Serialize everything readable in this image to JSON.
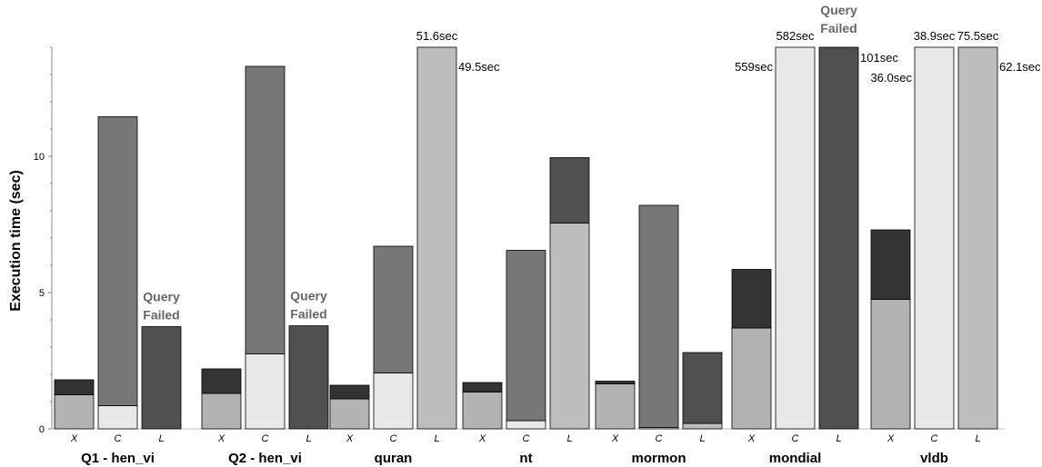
{
  "chart_data": {
    "type": "bar",
    "stacked": true,
    "ylabel": "Execution time (sec)",
    "ylim": [
      0,
      14
    ],
    "yticks": [
      "0",
      "5",
      "10"
    ],
    "grid": false,
    "colors": {
      "X": [
        "#b3b3b3",
        "#333333"
      ],
      "C": [
        "#e8e8e8",
        "#777777"
      ],
      "L": [
        "#bdbdbd",
        "#505050"
      ]
    },
    "groups": [
      {
        "name": "Q1 - hen_vi",
        "bars": [
          {
            "label": "X",
            "values": [
              1.25,
              0.55
            ]
          },
          {
            "label": "C",
            "values": [
              0.85,
              10.6
            ]
          },
          {
            "label": "L",
            "values": [
              0,
              3.75
            ],
            "annotation": "Query\nFailed"
          }
        ]
      },
      {
        "name": "Q2 - hen_vi",
        "bars": [
          {
            "label": "X",
            "values": [
              1.3,
              0.9
            ]
          },
          {
            "label": "C",
            "values": [
              2.75,
              10.55
            ]
          },
          {
            "label": "L",
            "values": [
              0,
              3.78
            ],
            "annotation": "Query\nFailed"
          }
        ]
      },
      {
        "name": "quran",
        "bars": [
          {
            "label": "X",
            "values": [
              1.1,
              0.5
            ]
          },
          {
            "label": "C",
            "values": [
              2.05,
              4.65
            ]
          },
          {
            "label": "L",
            "values": [
              14,
              0
            ],
            "clipped": true,
            "top_label": "51.6sec",
            "side_label": "49.5sec"
          }
        ]
      },
      {
        "name": "nt",
        "bars": [
          {
            "label": "X",
            "values": [
              1.35,
              0.35
            ]
          },
          {
            "label": "C",
            "values": [
              0.3,
              6.25
            ]
          },
          {
            "label": "L",
            "values": [
              7.55,
              2.4
            ]
          }
        ]
      },
      {
        "name": "mormon",
        "bars": [
          {
            "label": "X",
            "values": [
              1.65,
              0.1
            ]
          },
          {
            "label": "C",
            "values": [
              0.05,
              8.15
            ]
          },
          {
            "label": "L",
            "values": [
              0.2,
              2.6
            ]
          }
        ]
      },
      {
        "name": "mondial",
        "bars": [
          {
            "label": "X",
            "values": [
              3.7,
              2.15
            ]
          },
          {
            "label": "C",
            "values": [
              14,
              0
            ],
            "clipped": true,
            "top_label": "582sec",
            "left_label": "559sec"
          },
          {
            "label": "L",
            "values": [
              0,
              14
            ],
            "clipped": true,
            "annotation": "Query\nFailed",
            "side_label": "101sec"
          }
        ]
      },
      {
        "name": "vldb",
        "bars": [
          {
            "label": "X",
            "values": [
              4.75,
              2.55
            ]
          },
          {
            "label": "C",
            "values": [
              14,
              0
            ],
            "clipped": true,
            "top_label": "38.9sec",
            "left_label": "36.0sec"
          },
          {
            "label": "L",
            "values": [
              14,
              0
            ],
            "clipped": true,
            "top_label": "75.5sec",
            "side_label": "62.1sec"
          }
        ]
      }
    ]
  }
}
